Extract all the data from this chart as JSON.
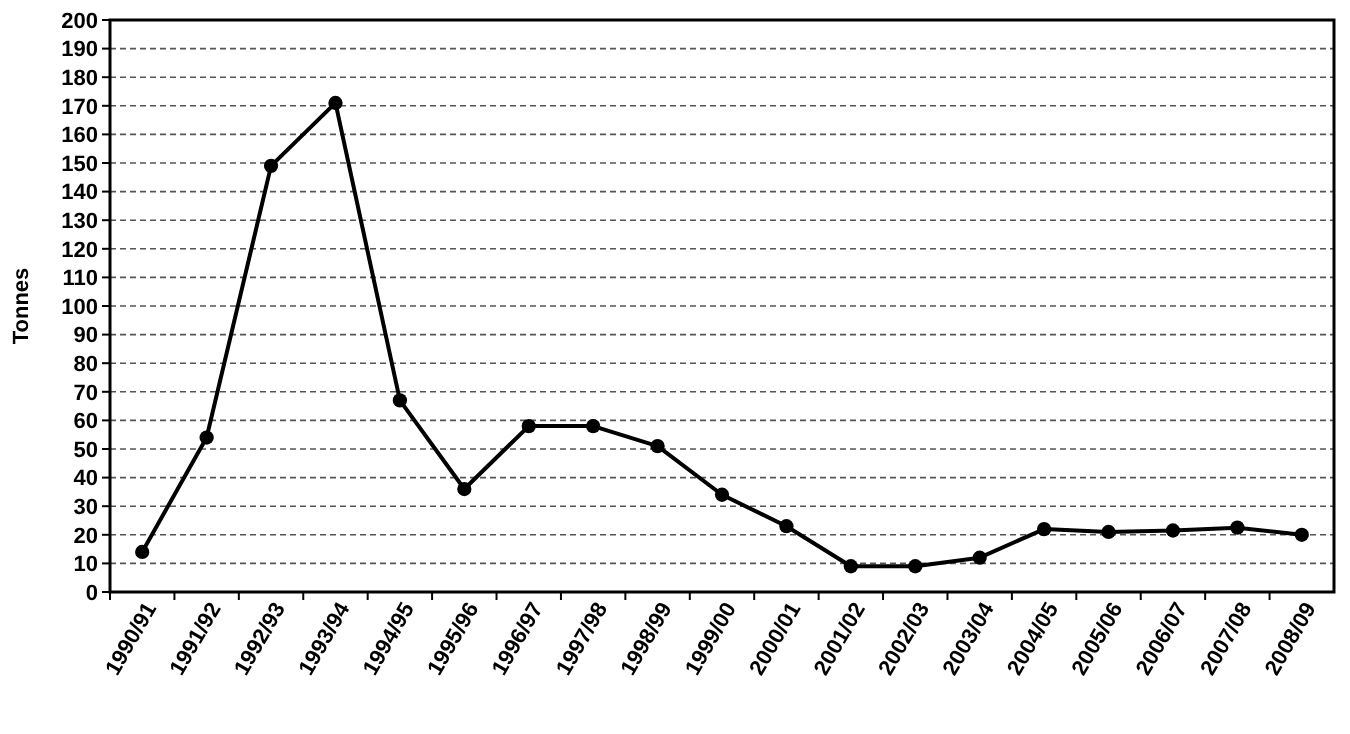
{
  "chart_data": {
    "type": "line",
    "ylabel": "Tonnes",
    "categories": [
      "1990/91",
      "1991/92",
      "1992/93",
      "1993/94",
      "1994/95",
      "1995/96",
      "1996/97",
      "1997/98",
      "1998/99",
      "1999/00",
      "2000/01",
      "2001/02",
      "2002/03",
      "2003/04",
      "2004/05",
      "2005/06",
      "2006/07",
      "2007/08",
      "2008/09"
    ],
    "series": [
      {
        "color": "#000000",
        "values": [
          14,
          54,
          149,
          171,
          67,
          36,
          58,
          58,
          51,
          34,
          23,
          9,
          9,
          12,
          22,
          21,
          21.5,
          22.5,
          20
        ]
      }
    ],
    "ylim": [
      0,
      200
    ],
    "yticks": [
      0,
      10,
      20,
      30,
      40,
      50,
      60,
      70,
      80,
      90,
      100,
      110,
      120,
      130,
      140,
      150,
      160,
      170,
      180,
      190,
      200
    ],
    "grid": "y",
    "marker": "circle",
    "line_style": "solid"
  }
}
